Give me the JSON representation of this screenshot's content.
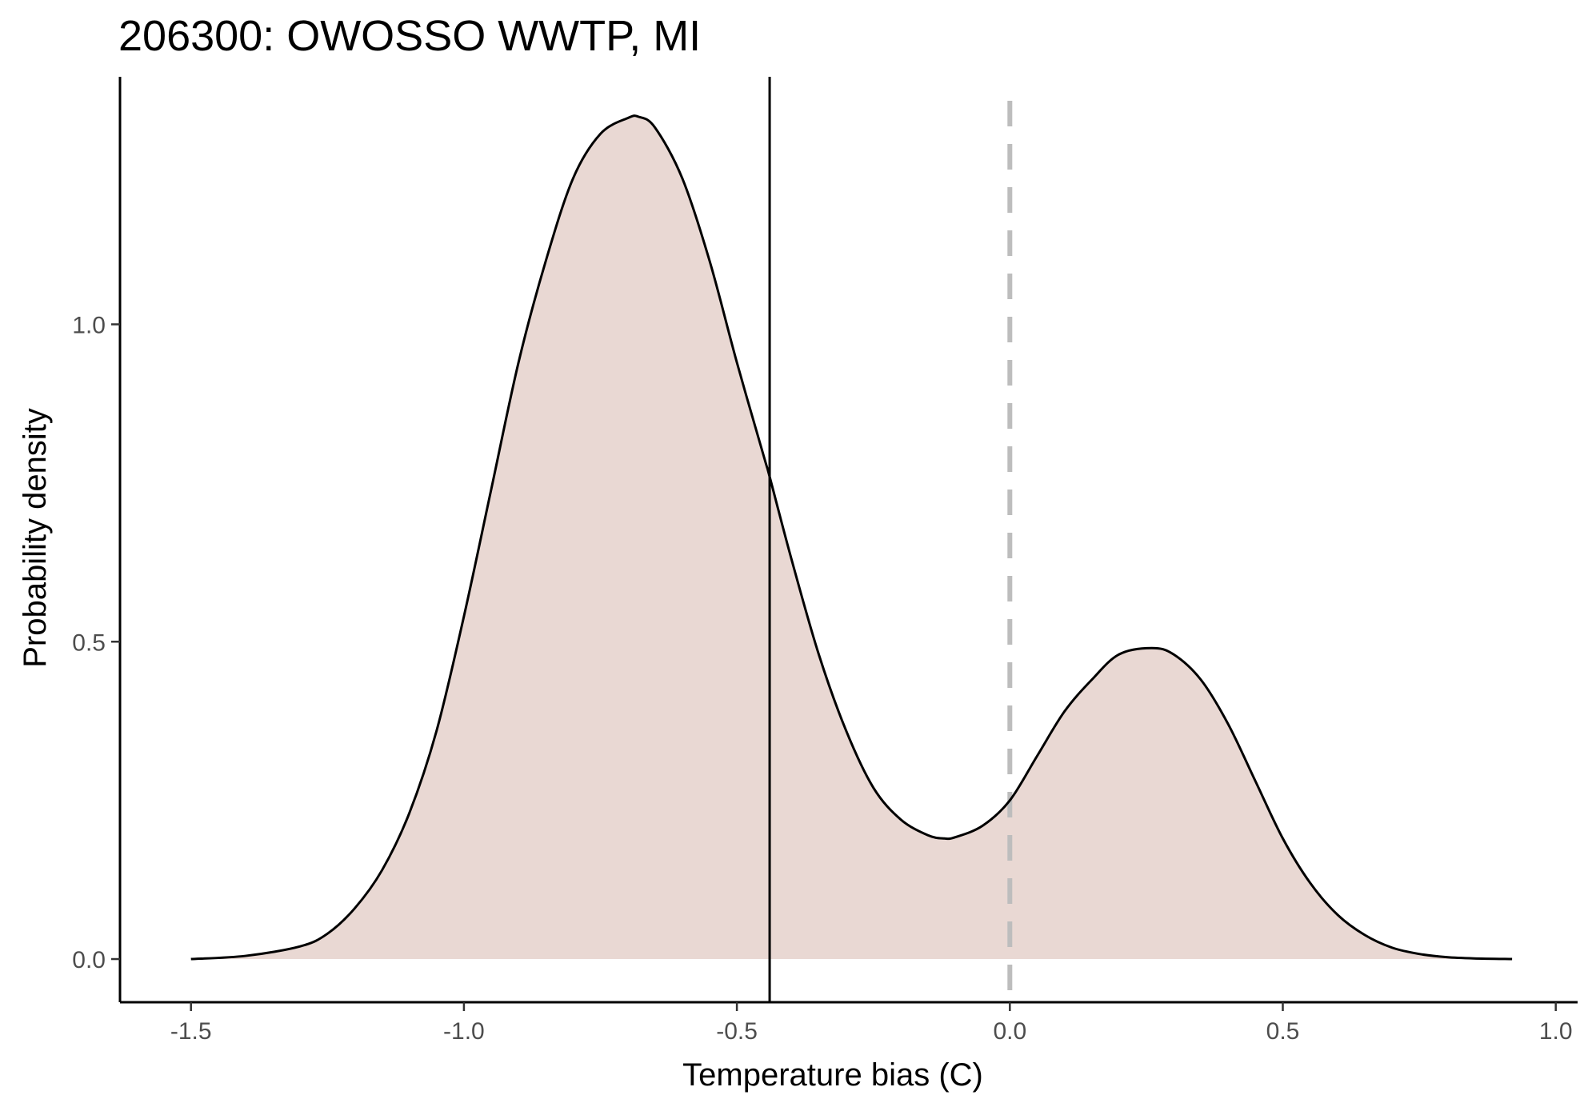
{
  "chart_data": {
    "type": "area",
    "title": "206300: OWOSSO WWTP, MI",
    "xlabel": "Temperature bias (C)",
    "ylabel": "Probability density",
    "xlim": [
      -1.63,
      1.04
    ],
    "ylim": [
      -0.068,
      1.39
    ],
    "x_ticks": [
      -1.5,
      -1.0,
      -0.5,
      0.0,
      0.5,
      1.0
    ],
    "x_tick_labels": [
      "-1.5",
      "-1.0",
      "-0.5",
      "0.0",
      "0.5",
      "1.0"
    ],
    "y_ticks": [
      0.0,
      0.5,
      1.0
    ],
    "y_tick_labels": [
      "0.0",
      "0.5",
      "1.0"
    ],
    "grid": false,
    "fill_color": "#e9d8d3",
    "line_color": "#000000",
    "reference_lines": [
      {
        "x": -0.44,
        "style": "solid",
        "color": "#000000"
      },
      {
        "x": 0.0,
        "style": "dashed",
        "color": "#bdbdbd"
      }
    ],
    "series": [
      {
        "x": [
          -1.5,
          -1.4,
          -1.3,
          -1.25,
          -1.2,
          -1.15,
          -1.1,
          -1.05,
          -1.0,
          -0.95,
          -0.9,
          -0.85,
          -0.8,
          -0.75,
          -0.7,
          -0.68,
          -0.65,
          -0.6,
          -0.55,
          -0.5,
          -0.45,
          -0.44,
          -0.4,
          -0.35,
          -0.3,
          -0.25,
          -0.2,
          -0.15,
          -0.12,
          -0.1,
          -0.05,
          0.0,
          0.05,
          0.1,
          0.15,
          0.2,
          0.26,
          0.3,
          0.35,
          0.4,
          0.45,
          0.5,
          0.55,
          0.6,
          0.65,
          0.7,
          0.75,
          0.8,
          0.85,
          0.92
        ],
        "y": [
          0.0,
          0.005,
          0.02,
          0.04,
          0.08,
          0.14,
          0.23,
          0.36,
          0.54,
          0.74,
          0.94,
          1.1,
          1.23,
          1.3,
          1.325,
          1.327,
          1.31,
          1.23,
          1.1,
          0.94,
          0.79,
          0.76,
          0.63,
          0.48,
          0.36,
          0.27,
          0.22,
          0.195,
          0.19,
          0.192,
          0.21,
          0.25,
          0.32,
          0.39,
          0.44,
          0.48,
          0.49,
          0.48,
          0.44,
          0.37,
          0.28,
          0.19,
          0.12,
          0.07,
          0.038,
          0.018,
          0.008,
          0.003,
          0.001,
          0.0
        ]
      }
    ]
  }
}
